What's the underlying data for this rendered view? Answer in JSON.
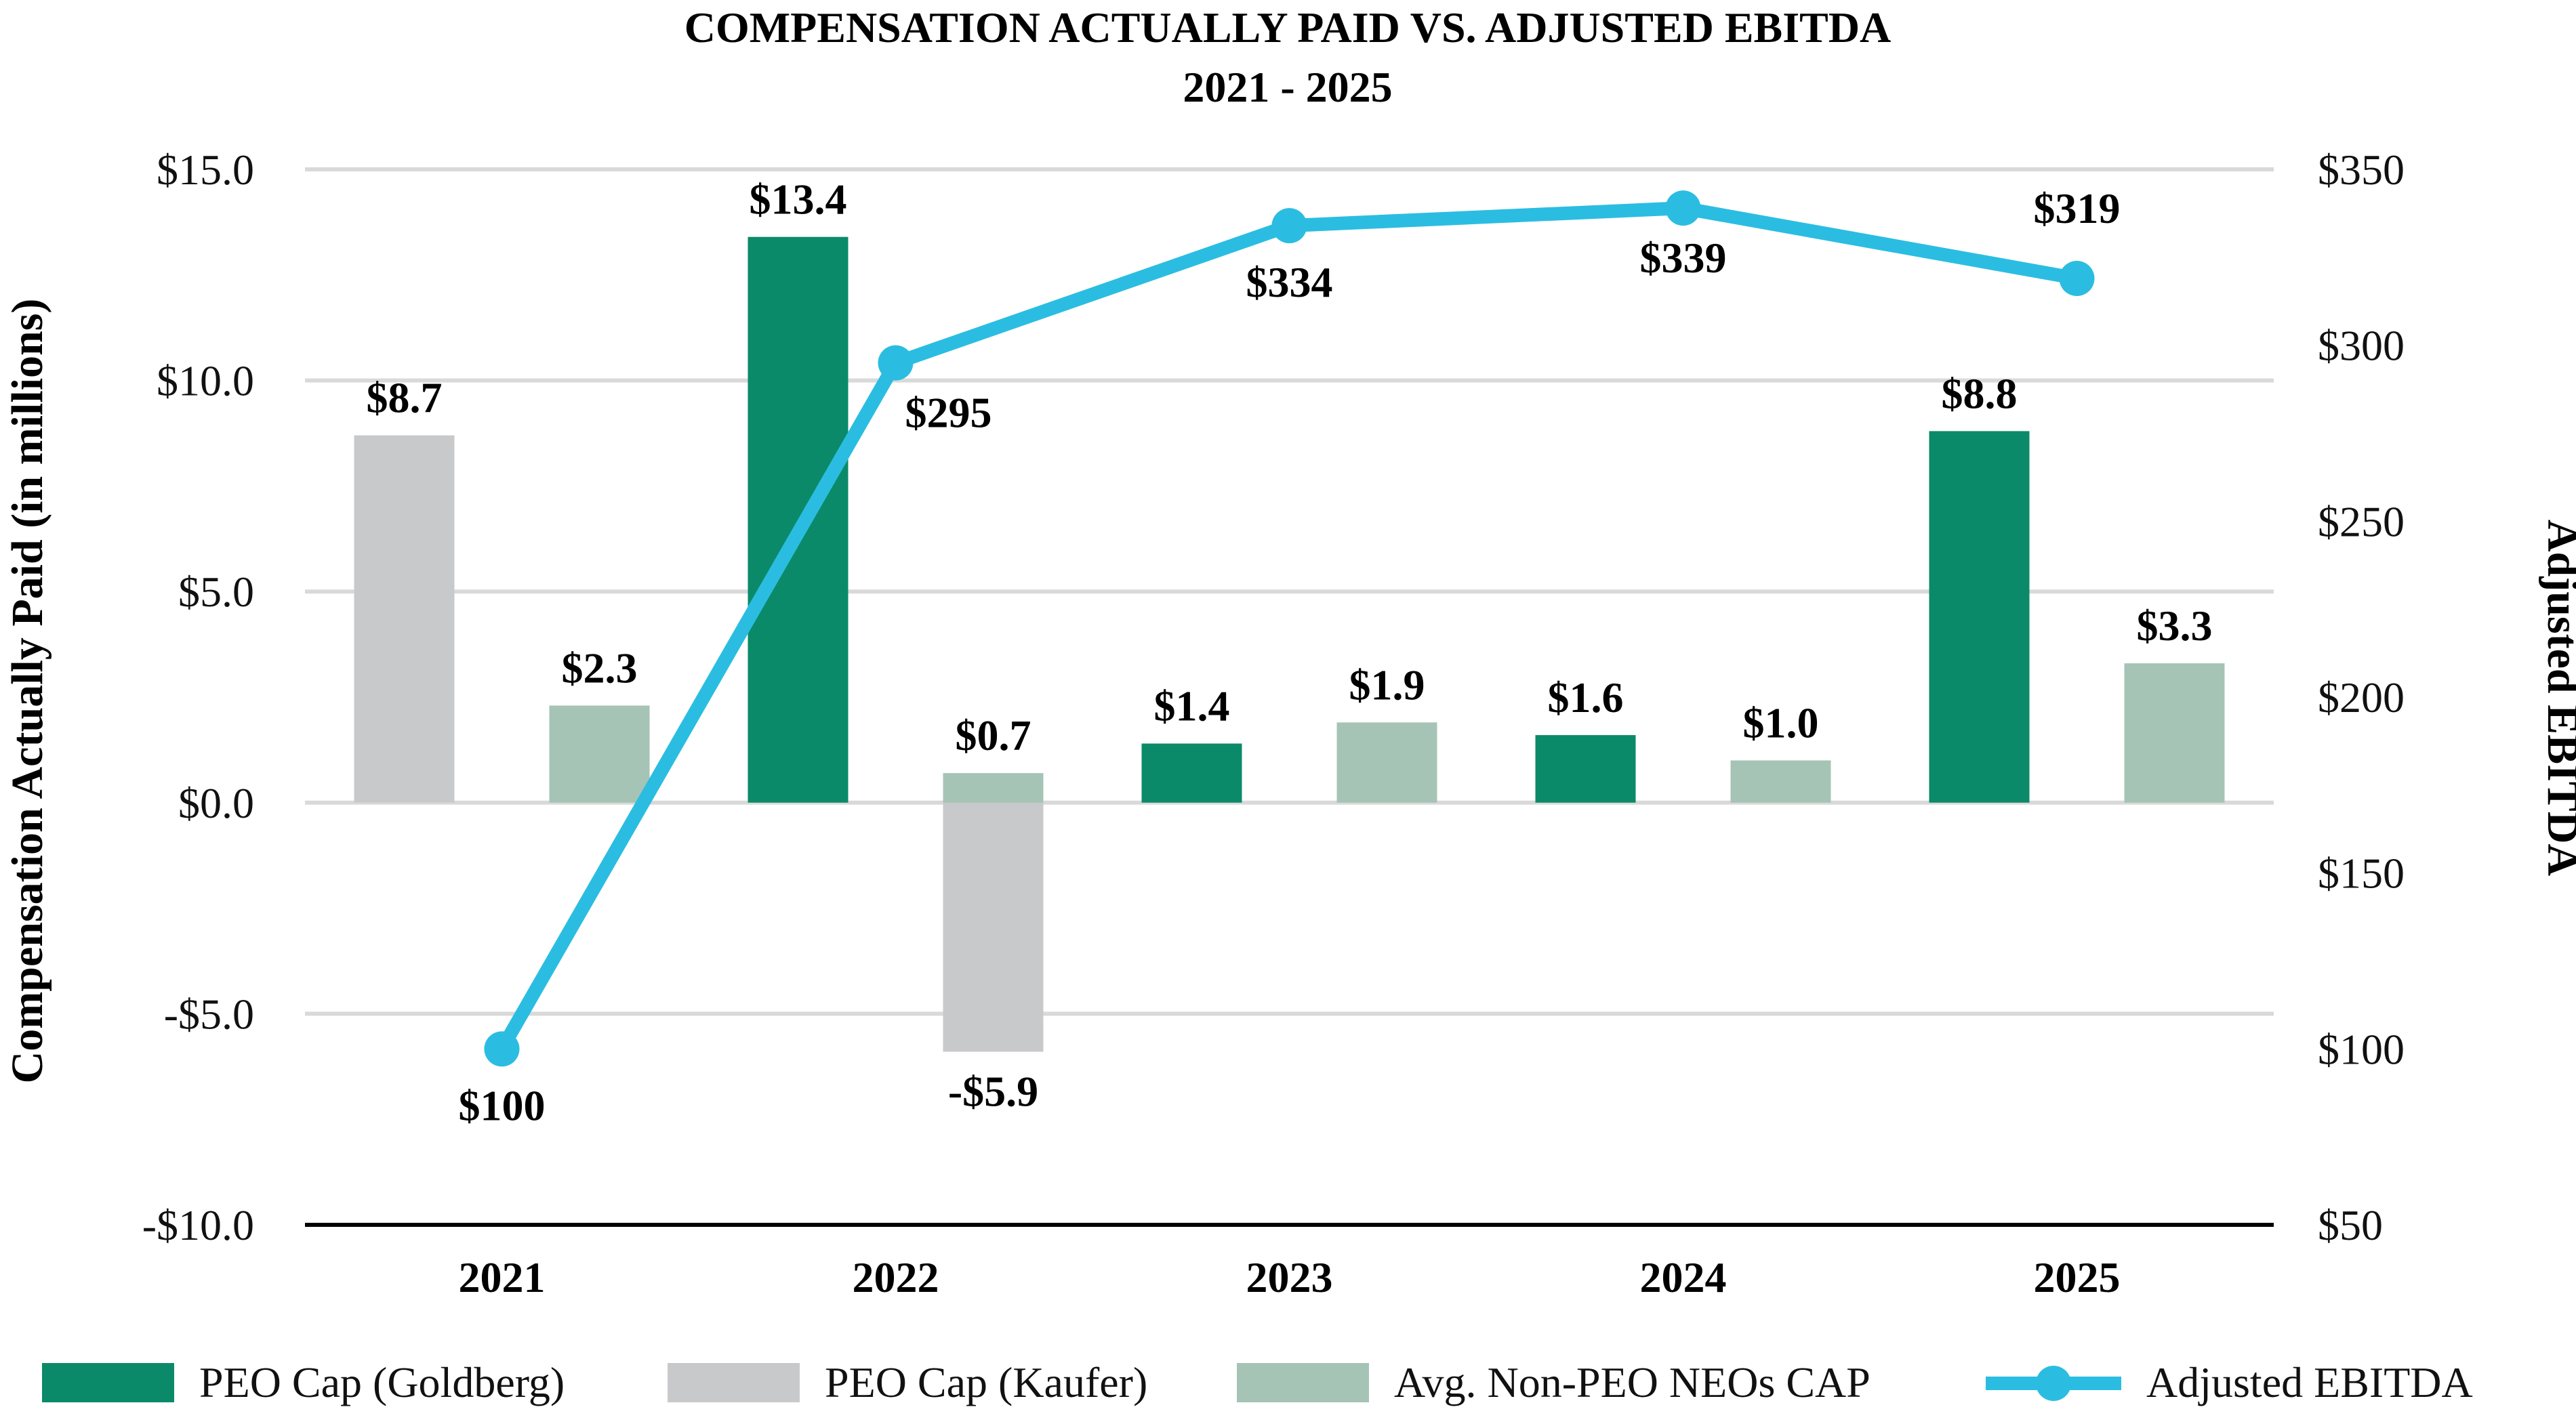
{
  "chart_data": {
    "type": "bar",
    "title": "COMPENSATION ACTUALLY PAID VS. ADJUSTED EBITDA",
    "subtitle": "2021 - 2025",
    "categories": [
      "2021",
      "2022",
      "2023",
      "2024",
      "2025"
    ],
    "ylabel": "Compensation Actually Paid (in millions)",
    "y2label": "Adjusted EBITDA",
    "ylim": [
      -10,
      15
    ],
    "y_ticks": [
      -10,
      -5,
      0,
      5,
      10,
      15
    ],
    "y_tick_labels": [
      "-$10.0",
      "-$5.0",
      "$0.0",
      "$5.0",
      "$10.0",
      "$15.0"
    ],
    "y2lim": [
      50,
      350
    ],
    "y2_ticks": [
      50,
      100,
      150,
      200,
      250,
      300,
      350
    ],
    "y2_tick_labels": [
      "$50",
      "$100",
      "$150",
      "$200",
      "$250",
      "$300",
      "$350"
    ],
    "grid": true,
    "legend_position": "bottom",
    "series": [
      {
        "name": "PEO Cap (Goldberg)",
        "type": "bar",
        "axis": "left",
        "color": "#0b8a69",
        "values": [
          null,
          13.4,
          1.4,
          1.6,
          8.8
        ],
        "labels": [
          null,
          "$13.4",
          "$1.4",
          "$1.6",
          "$8.8"
        ]
      },
      {
        "name": "PEO Cap (Kaufer)",
        "type": "bar",
        "axis": "left",
        "color": "#c8c9cb",
        "values": [
          8.7,
          -5.9,
          null,
          null,
          null
        ],
        "labels": [
          "$8.7",
          "-$5.9",
          null,
          null,
          null
        ]
      },
      {
        "name": "Avg. Non-PEO NEOs CAP",
        "type": "bar",
        "axis": "left",
        "color": "#a6c4b5",
        "values": [
          2.3,
          0.7,
          1.9,
          1.0,
          3.3
        ],
        "labels": [
          "$2.3",
          "$0.7",
          "$1.9",
          "$1.0",
          "$3.3"
        ]
      },
      {
        "name": "Adjusted EBITDA",
        "type": "line",
        "axis": "right",
        "color": "#2bbde1",
        "values": [
          100,
          295,
          334,
          339,
          319
        ],
        "labels": [
          "$100",
          "$295",
          "$334",
          "$339",
          "$319"
        ]
      }
    ]
  }
}
